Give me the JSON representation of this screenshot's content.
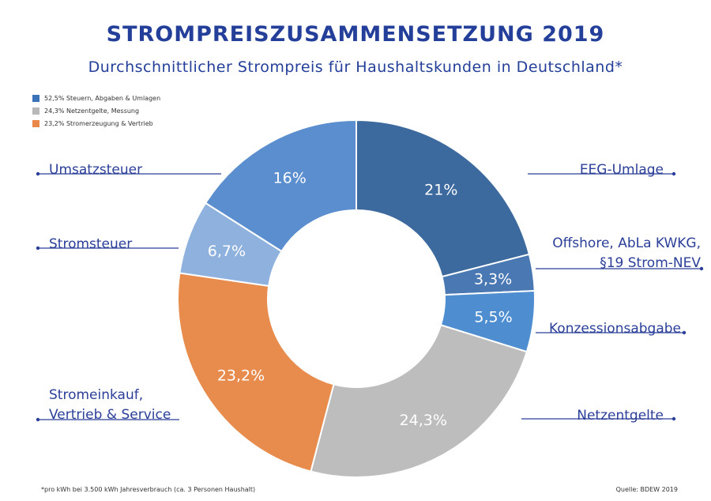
{
  "title": "STROMPREISZUSAMMENSETZUNG 2019",
  "subtitle": "Durchschnittlicher Strompreis für Haushaltskunden in Deutschland*",
  "legend": [
    {
      "label": "52,5% Steuern, Abgaben & Umlagen",
      "color": "#3b73b8"
    },
    {
      "label": "24,3% Netzentgelte, Messung",
      "color": "#b8b8b8"
    },
    {
      "label": "23,2% Stromerzeugung & Vertrieb",
      "color": "#e8894a"
    }
  ],
  "footnote": "*pro kWh bei 3.500 kWh Jahresverbrauch (ca. 3 Personen Haushalt)",
  "source": "Quelle: BDEW 2019",
  "colors": {
    "title": "#233f99",
    "leader": "#2b3f99",
    "stroke": "#ffffff"
  },
  "chart_data": {
    "type": "pie",
    "donut": true,
    "start": "12 o'clock, clockwise",
    "slices": [
      {
        "name": "EEG-Umlage",
        "value": 21.0,
        "label": "21%",
        "color": "#3d6a9e",
        "group": "Steuern, Abgaben & Umlagen",
        "callout_lines": [
          "EEG-Umlage"
        ],
        "side": "right"
      },
      {
        "name": "Offshore, AbLa KWKG, §19 Strom-NEV",
        "value": 3.3,
        "label": "3,3%",
        "color": "#4a78b3",
        "group": "Steuern, Abgaben & Umlagen",
        "callout_lines": [
          "Offshore, AbLa KWKG,",
          "§19 Strom-NEV"
        ],
        "side": "right"
      },
      {
        "name": "Konzessionsabgabe",
        "value": 5.5,
        "label": "5,5%",
        "color": "#4e8ed0",
        "group": "Steuern, Abgaben & Umlagen",
        "callout_lines": [
          "Konzessionsabgabe"
        ],
        "side": "right"
      },
      {
        "name": "Netzentgelte",
        "value": 24.3,
        "label": "24,3%",
        "color": "#bdbdbd",
        "group": "Netzentgelte, Messung",
        "callout_lines": [
          "Netzentgelte"
        ],
        "side": "right"
      },
      {
        "name": "Stromeinkauf, Vertrieb & Service",
        "value": 23.2,
        "label": "23,2%",
        "color": "#e88c4e",
        "group": "Stromerzeugung & Vertrieb",
        "callout_lines": [
          "Stromeinkauf,",
          "Vertrieb & Service"
        ],
        "side": "left"
      },
      {
        "name": "Stromsteuer",
        "value": 6.7,
        "label": "6,7%",
        "color": "#8fb1de",
        "group": "Steuern, Abgaben & Umlagen",
        "callout_lines": [
          "Stromsteuer"
        ],
        "side": "left"
      },
      {
        "name": "Umsatzsteuer",
        "value": 16.0,
        "label": "16%",
        "color": "#5b8ecf",
        "group": "Steuern, Abgaben & Umlagen",
        "callout_lines": [
          "Umsatzsteuer"
        ],
        "side": "left"
      }
    ]
  }
}
